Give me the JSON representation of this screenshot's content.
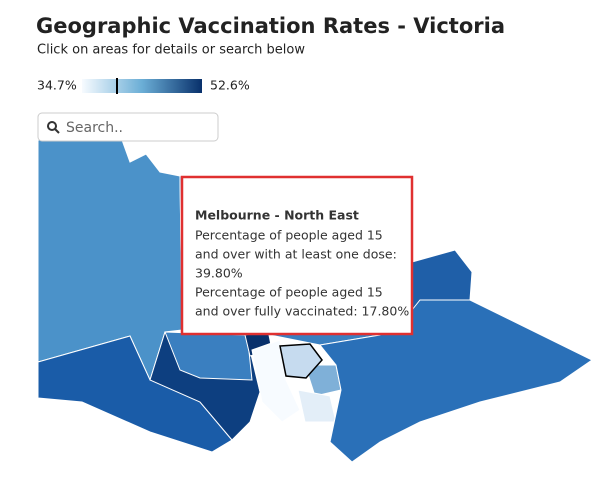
{
  "header": {
    "title": "Geographic Vaccination Rates - Victoria",
    "subtitle": "Click on areas for details or search below"
  },
  "legend": {
    "min_label": "34.7%",
    "max_label": "52.6%"
  },
  "search": {
    "placeholder": "Search.."
  },
  "tooltip": {
    "region": "Melbourne - North East",
    "lines": [
      "Percentage of people aged 15",
      "and over with at least one dose:",
      "39.80%",
      "Percentage of people aged 15",
      "and over fully vaccinated: 17.80%"
    ]
  }
}
